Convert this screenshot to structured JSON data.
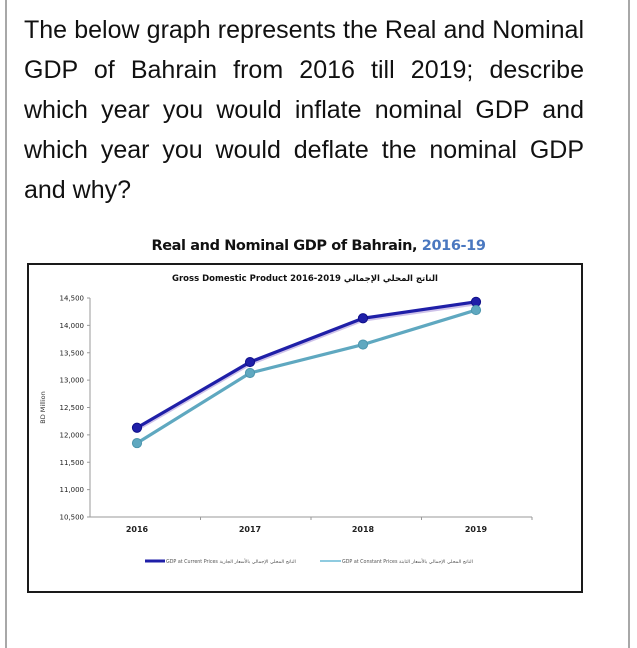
{
  "question": {
    "text": "The below graph represents the Real and Nominal GDP of Bahrain from 2016 till 2019; describe which year you would inflate nominal GDP and which year you would deflate the nominal GDP and why?"
  },
  "chart_title": {
    "main": "Real and Nominal GDP of Bahrain, ",
    "years": "2016-19"
  },
  "chart_data": {
    "type": "line",
    "title": "Real and Nominal GDP of Bahrain, 2016-19",
    "subtitle": "Gross Domestic Product 2016-2019 الناتج المحلي الإجمالي",
    "xlabel": "",
    "ylabel": "BD Million",
    "categories": [
      "2016",
      "2017",
      "2018",
      "2019"
    ],
    "ylim": [
      10500,
      14500
    ],
    "yticks": [
      "14,500",
      "14,000",
      "13,500",
      "13,000",
      "12,500",
      "12,000",
      "11,500",
      "11,000",
      "10,500"
    ],
    "grid": false,
    "legend_position": "bottom",
    "series": [
      {
        "name": "GDP at Current Prices الناتج المحلي الإجمالي بالأسعار الجارية",
        "color": "#1f1fa8",
        "values": [
          12130,
          13330,
          14130,
          14430
        ]
      },
      {
        "name": "GDP at Constant Prices الناتج المحلي الإجمالي بالأسعار الثابتة",
        "color": "#5fa8c0",
        "values": [
          11850,
          13130,
          13650,
          14280
        ]
      }
    ]
  },
  "legend": {
    "current_en": "GDP at Current Prices",
    "current_ar": "الناتج المحلي الإجمالي بالأسعار الجارية",
    "constant_en": "GDP at Constant Prices",
    "constant_ar": "الناتج المحلي الإجمالي بالأسعار الثابتة"
  }
}
